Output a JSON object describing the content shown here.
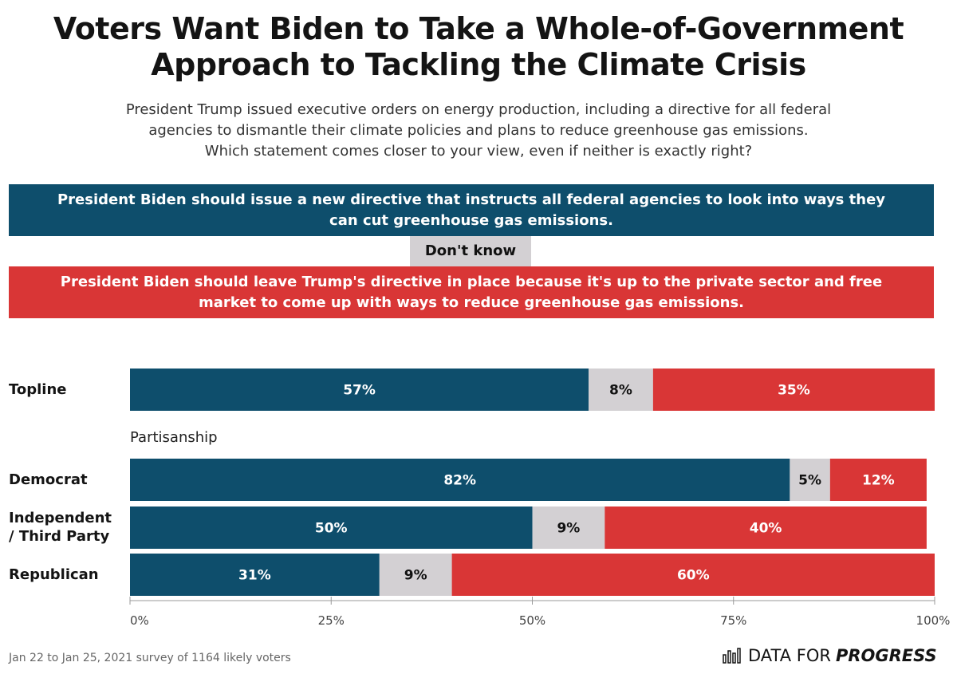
{
  "title": {
    "line1": "Voters Want Biden to Take a Whole-of-Government",
    "line2": "Approach to Tackling the Climate Crisis"
  },
  "subtitle": {
    "line1": "President Trump issued executive orders on energy production, including a directive for all federal",
    "line2": "agencies to dismantle their climate policies and plans to reduce greenhouse gas emissions.",
    "line3": "Which statement comes closer to your view, even if neither is exactly right?"
  },
  "legend": {
    "option_a": {
      "line1": "President Biden should issue a new directive that instructs all federal agencies to look into ways they",
      "line2": "can cut greenhouse gas emissions."
    },
    "dont_know": "Don't know",
    "option_b": {
      "line1": "President Biden should leave Trump's directive in place because it's up to the private sector and free",
      "line2": "market to come up with ways to reduce greenhouse gas emissions."
    }
  },
  "group_label": "Partisanship",
  "row_labels": {
    "topline": "Topline",
    "democrat": "Democrat",
    "independent_line1": "Independent",
    "independent_line2": "/ Third Party",
    "republican": "Republican"
  },
  "footer": {
    "note": "Jan 22 to Jan 25, 2021 survey of 1164 likely voters",
    "brand_light": "DATA FOR",
    "brand_bold": "PROGRESS"
  },
  "colors": {
    "blue": "#0e4e6c",
    "gray": "#d3d0d3",
    "red": "#d93636"
  },
  "chart_data": {
    "type": "bar",
    "orientation": "horizontal-stacked",
    "categories": [
      "Topline",
      "Democrat",
      "Independent / Third Party",
      "Republican"
    ],
    "series": [
      {
        "values": [
          57,
          82,
          50,
          31
        ],
        "labels": [
          "57%",
          "82%",
          "50%",
          "31%"
        ]
      },
      {
        "name": "Don't know",
        "values": [
          8,
          5,
          9,
          9
        ],
        "labels": [
          "8%",
          "5%",
          "9%",
          "9%"
        ]
      },
      {
        "values": [
          35,
          12,
          40,
          60
        ],
        "labels": [
          "35%",
          "12%",
          "40%",
          "60%"
        ]
      }
    ],
    "xlim": [
      0,
      100
    ],
    "xticks": [
      "0%",
      "25%",
      "50%",
      "75%",
      "100%"
    ],
    "grid": false
  }
}
